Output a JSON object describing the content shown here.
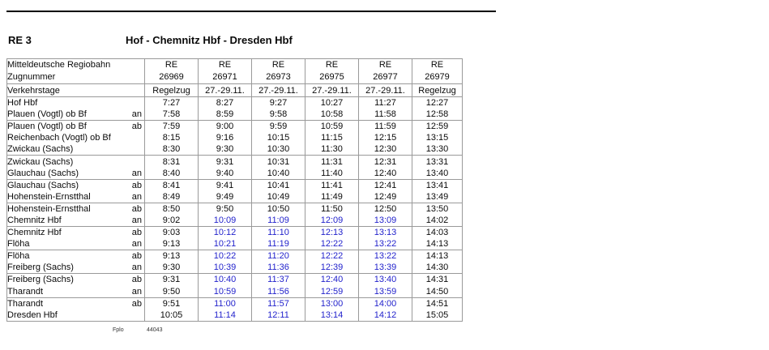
{
  "page": {
    "line_label": "RE 3",
    "route_title": "Hof - Chemnitz Hbf - Dresden Hbf",
    "footer_label": "Fplo",
    "footer_number": "44043"
  },
  "table": {
    "operator": "Mitteldeutsche Regiobahn",
    "train_number_label": "Zugnummer",
    "validity_label": "Verkehrstage",
    "highlight_color": "#2222cc",
    "grid_color": "#9a9a9a",
    "trains": [
      {
        "type": "RE",
        "number": "26969",
        "days": "Regelzug"
      },
      {
        "type": "RE",
        "number": "26971",
        "days": "27.-29.11."
      },
      {
        "type": "RE",
        "number": "26973",
        "days": "27.-29.11."
      },
      {
        "type": "RE",
        "number": "26975",
        "days": "27.-29.11."
      },
      {
        "type": "RE",
        "number": "26977",
        "days": "27.-29.11."
      },
      {
        "type": "RE",
        "number": "26979",
        "days": "Regelzug"
      }
    ],
    "rows": [
      {
        "station": "Hof Hbf",
        "stop": "",
        "times": [
          "7:27",
          "8:27",
          "9:27",
          "10:27",
          "11:27",
          "12:27"
        ],
        "divider_after": false,
        "highlight_mid": false
      },
      {
        "station": "Plauen (Vogtl) ob Bf",
        "stop": "an",
        "times": [
          "7:58",
          "8:59",
          "9:58",
          "10:58",
          "11:58",
          "12:58"
        ],
        "divider_after": true,
        "highlight_mid": false
      },
      {
        "station": "Plauen (Vogtl) ob Bf",
        "stop": "ab",
        "times": [
          "7:59",
          "9:00",
          "9:59",
          "10:59",
          "11:59",
          "12:59"
        ],
        "divider_after": false,
        "highlight_mid": false
      },
      {
        "station": "Reichenbach (Vogtl) ob Bf",
        "stop": "",
        "times": [
          "8:15",
          "9:16",
          "10:15",
          "11:15",
          "12:15",
          "13:15"
        ],
        "divider_after": false,
        "highlight_mid": false
      },
      {
        "station": "Zwickau (Sachs)",
        "stop": "",
        "times": [
          "8:30",
          "9:30",
          "10:30",
          "11:30",
          "12:30",
          "13:30"
        ],
        "divider_after": true,
        "highlight_mid": false
      },
      {
        "station": "Zwickau (Sachs)",
        "stop": "",
        "times": [
          "8:31",
          "9:31",
          "10:31",
          "11:31",
          "12:31",
          "13:31"
        ],
        "divider_after": false,
        "highlight_mid": false
      },
      {
        "station": "Glauchau (Sachs)",
        "stop": "an",
        "times": [
          "8:40",
          "9:40",
          "10:40",
          "11:40",
          "12:40",
          "13:40"
        ],
        "divider_after": true,
        "highlight_mid": false
      },
      {
        "station": "Glauchau (Sachs)",
        "stop": "ab",
        "times": [
          "8:41",
          "9:41",
          "10:41",
          "11:41",
          "12:41",
          "13:41"
        ],
        "divider_after": false,
        "highlight_mid": false
      },
      {
        "station": "Hohenstein-Ernstthal",
        "stop": "an",
        "times": [
          "8:49",
          "9:49",
          "10:49",
          "11:49",
          "12:49",
          "13:49"
        ],
        "divider_after": true,
        "highlight_mid": false
      },
      {
        "station": "Hohenstein-Ernstthal",
        "stop": "ab",
        "times": [
          "8:50",
          "9:50",
          "10:50",
          "11:50",
          "12:50",
          "13:50"
        ],
        "divider_after": false,
        "highlight_mid": false
      },
      {
        "station": "Chemnitz Hbf",
        "stop": "an",
        "times": [
          "9:02",
          "10:09",
          "11:09",
          "12:09",
          "13:09",
          "14:02"
        ],
        "divider_after": true,
        "highlight_mid": true
      },
      {
        "station": "Chemnitz Hbf",
        "stop": "ab",
        "times": [
          "9:03",
          "10:12",
          "11:10",
          "12:13",
          "13:13",
          "14:03"
        ],
        "divider_after": false,
        "highlight_mid": true
      },
      {
        "station": "Flöha",
        "stop": "an",
        "times": [
          "9:13",
          "10:21",
          "11:19",
          "12:22",
          "13:22",
          "14:13"
        ],
        "divider_after": true,
        "highlight_mid": true
      },
      {
        "station": "Flöha",
        "stop": "ab",
        "times": [
          "9:13",
          "10:22",
          "11:20",
          "12:22",
          "13:22",
          "14:13"
        ],
        "divider_after": false,
        "highlight_mid": true
      },
      {
        "station": "Freiberg (Sachs)",
        "stop": "an",
        "times": [
          "9:30",
          "10:39",
          "11:36",
          "12:39",
          "13:39",
          "14:30"
        ],
        "divider_after": true,
        "highlight_mid": true
      },
      {
        "station": "Freiberg (Sachs)",
        "stop": "ab",
        "times": [
          "9:31",
          "10:40",
          "11:37",
          "12:40",
          "13:40",
          "14:31"
        ],
        "divider_after": false,
        "highlight_mid": true
      },
      {
        "station": "Tharandt",
        "stop": "an",
        "times": [
          "9:50",
          "10:59",
          "11:56",
          "12:59",
          "13:59",
          "14:50"
        ],
        "divider_after": true,
        "highlight_mid": true
      },
      {
        "station": "Tharandt",
        "stop": "ab",
        "times": [
          "9:51",
          "11:00",
          "11:57",
          "13:00",
          "14:00",
          "14:51"
        ],
        "divider_after": false,
        "highlight_mid": true
      },
      {
        "station": "Dresden Hbf",
        "stop": "",
        "times": [
          "10:05",
          "11:14",
          "12:11",
          "13:14",
          "14:12",
          "15:05"
        ],
        "divider_after": false,
        "highlight_mid": true
      }
    ]
  }
}
